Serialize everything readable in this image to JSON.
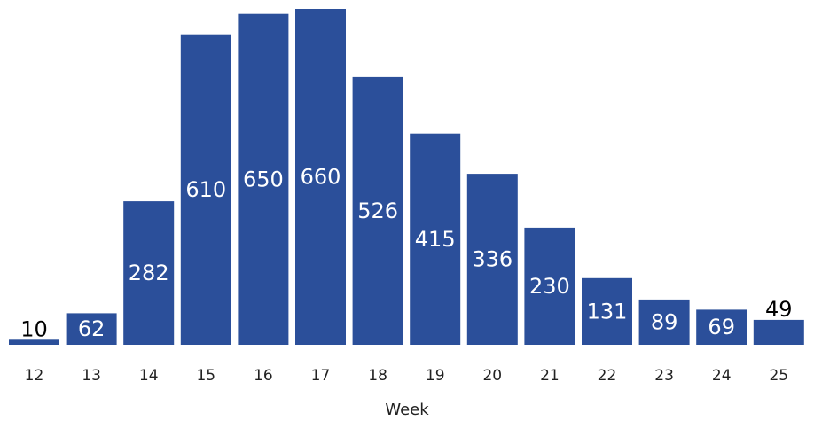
{
  "chart_data": {
    "type": "bar",
    "title": "",
    "xlabel": "Week",
    "ylabel": "",
    "categories": [
      "12",
      "13",
      "14",
      "15",
      "16",
      "17",
      "18",
      "19",
      "20",
      "21",
      "22",
      "23",
      "24",
      "25"
    ],
    "values": [
      10,
      62,
      282,
      610,
      650,
      660,
      526,
      415,
      336,
      230,
      131,
      89,
      69,
      49
    ],
    "ylim": [
      0,
      680
    ],
    "grid": false,
    "legend": "none",
    "colors": {
      "bar": "#2b4f9a",
      "label_inside": "#ffffff",
      "label_outside": "#000000"
    }
  }
}
